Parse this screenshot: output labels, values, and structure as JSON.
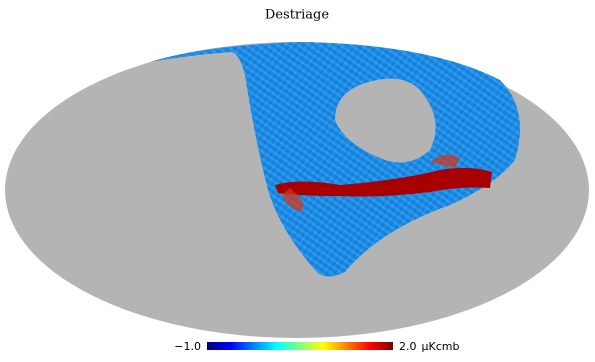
{
  "chart_data": {
    "type": "mollweide",
    "title": "Destriage",
    "background_color": "#b4b4b4",
    "colorbar": {
      "lim": [
        -1,
        2
      ],
      "ticks": [
        {
          "value": -1,
          "label": "−1.0"
        },
        {
          "value": 2,
          "label": "2.0"
        }
      ],
      "unit": "μKcmb",
      "colors": [
        "#00007f",
        "#0000ff",
        "#0080ff",
        "#00ffff",
        "#80ff80",
        "#ffff00",
        "#ff8000",
        "#ff0000",
        "#7f0000"
      ]
    }
  }
}
